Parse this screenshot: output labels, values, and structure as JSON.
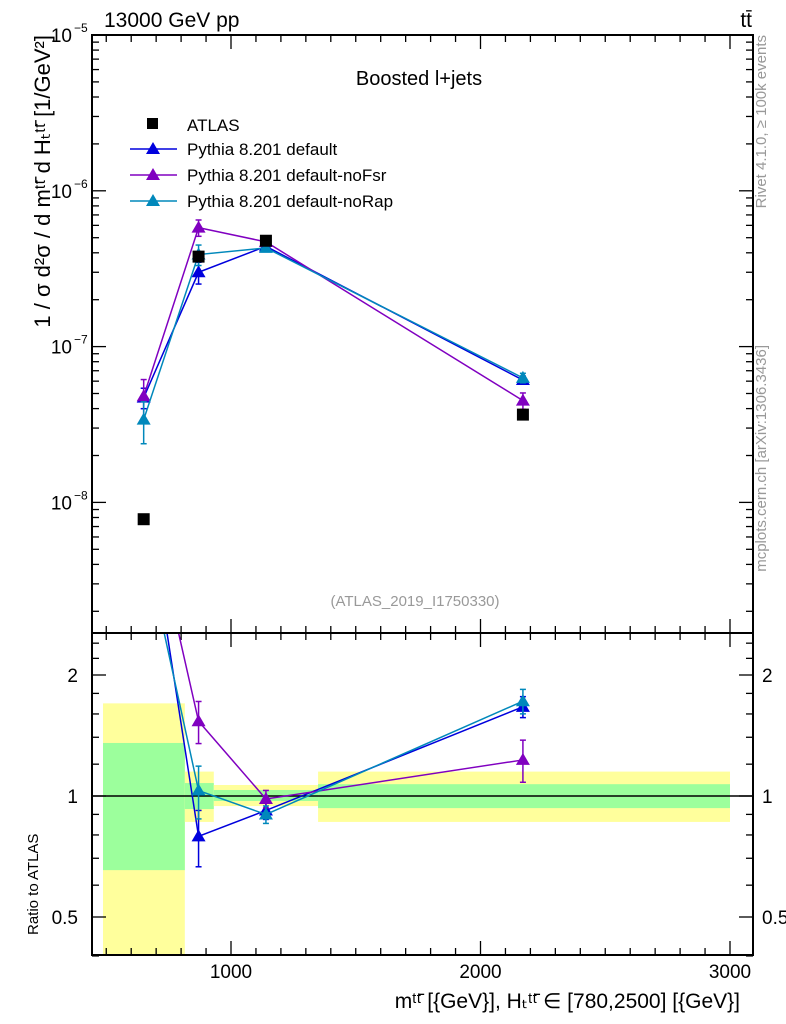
{
  "chart_data": {
    "type": "scatter",
    "header_left": "13000 GeV pp",
    "header_right": "tt̄",
    "title": "Boosted l+jets",
    "analysis": "(ATLAS_2019_I1750330)",
    "side_text_top": "Rivet 4.1.0, ≥ 100k events",
    "side_text_bottom": "mcplots.cern.ch [arXiv:1306.3436]",
    "ylabel": "1 / σ d²σ / d mᵗᵗ̄ d Hₜᵗᵗ̄ [1/GeV²]",
    "xlabel": "mᵗᵗ̄ [{GeV}], Hₜᵗᵗ̄ ∈ [780,2500] [{GeV}]",
    "ratio_ylabel": "Ratio to ATLAS",
    "xlim": [
      443,
      3092
    ],
    "ylim": [
      1.5e-09,
      1e-05
    ],
    "yscale": "log",
    "ratio_ylim": [
      0.4,
      2.54
    ],
    "x_ticks": [
      "1000",
      "2000",
      "3000"
    ],
    "x_tick_values": [
      1000,
      2000,
      3000
    ],
    "y_ticks": [
      {
        "label": "10",
        "exp": "−5",
        "value": 1e-05
      },
      {
        "label": "10",
        "exp": "−6",
        "value": 1e-06
      },
      {
        "label": "10",
        "exp": "−7",
        "value": 1e-07
      },
      {
        "label": "10",
        "exp": "−8",
        "value": 1e-08
      }
    ],
    "ratio_ticks": [
      {
        "label": "2",
        "value": 2
      },
      {
        "label": "1",
        "value": 1
      },
      {
        "label": "0.5",
        "value": 0.5
      }
    ],
    "legend_position": "top-left",
    "x": [
      650,
      870,
      1140,
      2170
    ],
    "data": {
      "name": "ATLAS",
      "color": "#000000",
      "values": [
        7.8e-09,
        3.78e-07,
        4.78e-07,
        3.66e-08
      ]
    },
    "bands": {
      "edges": [
        487,
        815,
        931,
        1349,
        3000
      ],
      "green": [
        [
          0.654,
          1.355
        ],
        [
          0.928,
          1.077
        ],
        [
          0.972,
          1.035
        ],
        [
          0.933,
          1.07
        ]
      ],
      "yellow": [
        [
          0.3,
          1.7
        ],
        [
          0.862,
          1.15
        ],
        [
          0.944,
          1.065
        ],
        [
          0.862,
          1.15
        ]
      ],
      "green_color": "#9cff9c",
      "yellow_color": "#ffff9c"
    },
    "series": [
      {
        "name": "Pythia 8.201 default",
        "color": "#0000dd",
        "values": [
          4.7e-08,
          3e-07,
          4.4e-07,
          6.1e-08
        ],
        "rel_err": [
          0.15,
          0.16,
          0.05,
          0.06
        ]
      },
      {
        "name": "Pythia 8.201 default-noFsr",
        "color": "#8000c0",
        "values": [
          4.8e-08,
          5.8e-07,
          4.7e-07,
          4.5e-08
        ],
        "rel_err": [
          0.28,
          0.12,
          0.05,
          0.12
        ]
      },
      {
        "name": "Pythia 8.201 default-noRap",
        "color": "#0088bb",
        "values": [
          3.4e-08,
          3.9e-07,
          4.3e-07,
          6.3e-08
        ],
        "rel_err": [
          0.3,
          0.15,
          0.05,
          0.07
        ]
      }
    ]
  }
}
